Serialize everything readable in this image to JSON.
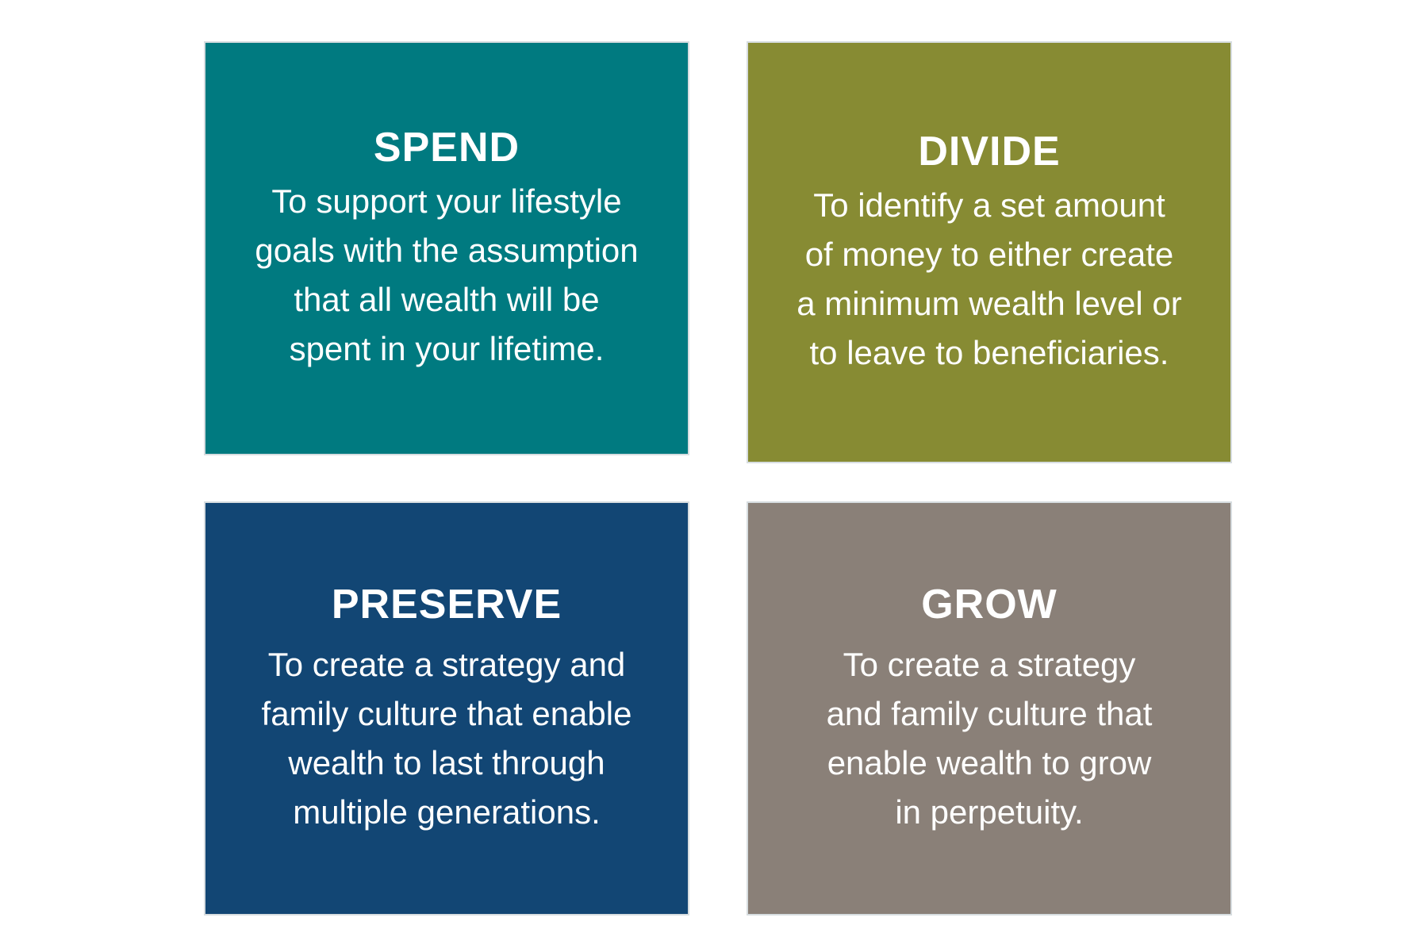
{
  "cards": [
    {
      "title": "SPEND",
      "body": "To support your lifestyle\ngoals with the assumption\nthat all wealth will be\nspent in your lifetime.",
      "color": "#007a80"
    },
    {
      "title": "DIVIDE",
      "body": "To identify a set amount\nof money to either create\na minimum wealth level or\nto leave to beneficiaries.",
      "color": "#878b33"
    },
    {
      "title": "PRESERVE",
      "body": "To create a strategy and\nfamily culture that enable\nwealth to last through\nmultiple generations.",
      "color": "#124674"
    },
    {
      "title": "GROW",
      "body": "To create a strategy\nand family culture that\nenable wealth to grow\nin perpetuity.",
      "color": "#8a8078"
    }
  ]
}
